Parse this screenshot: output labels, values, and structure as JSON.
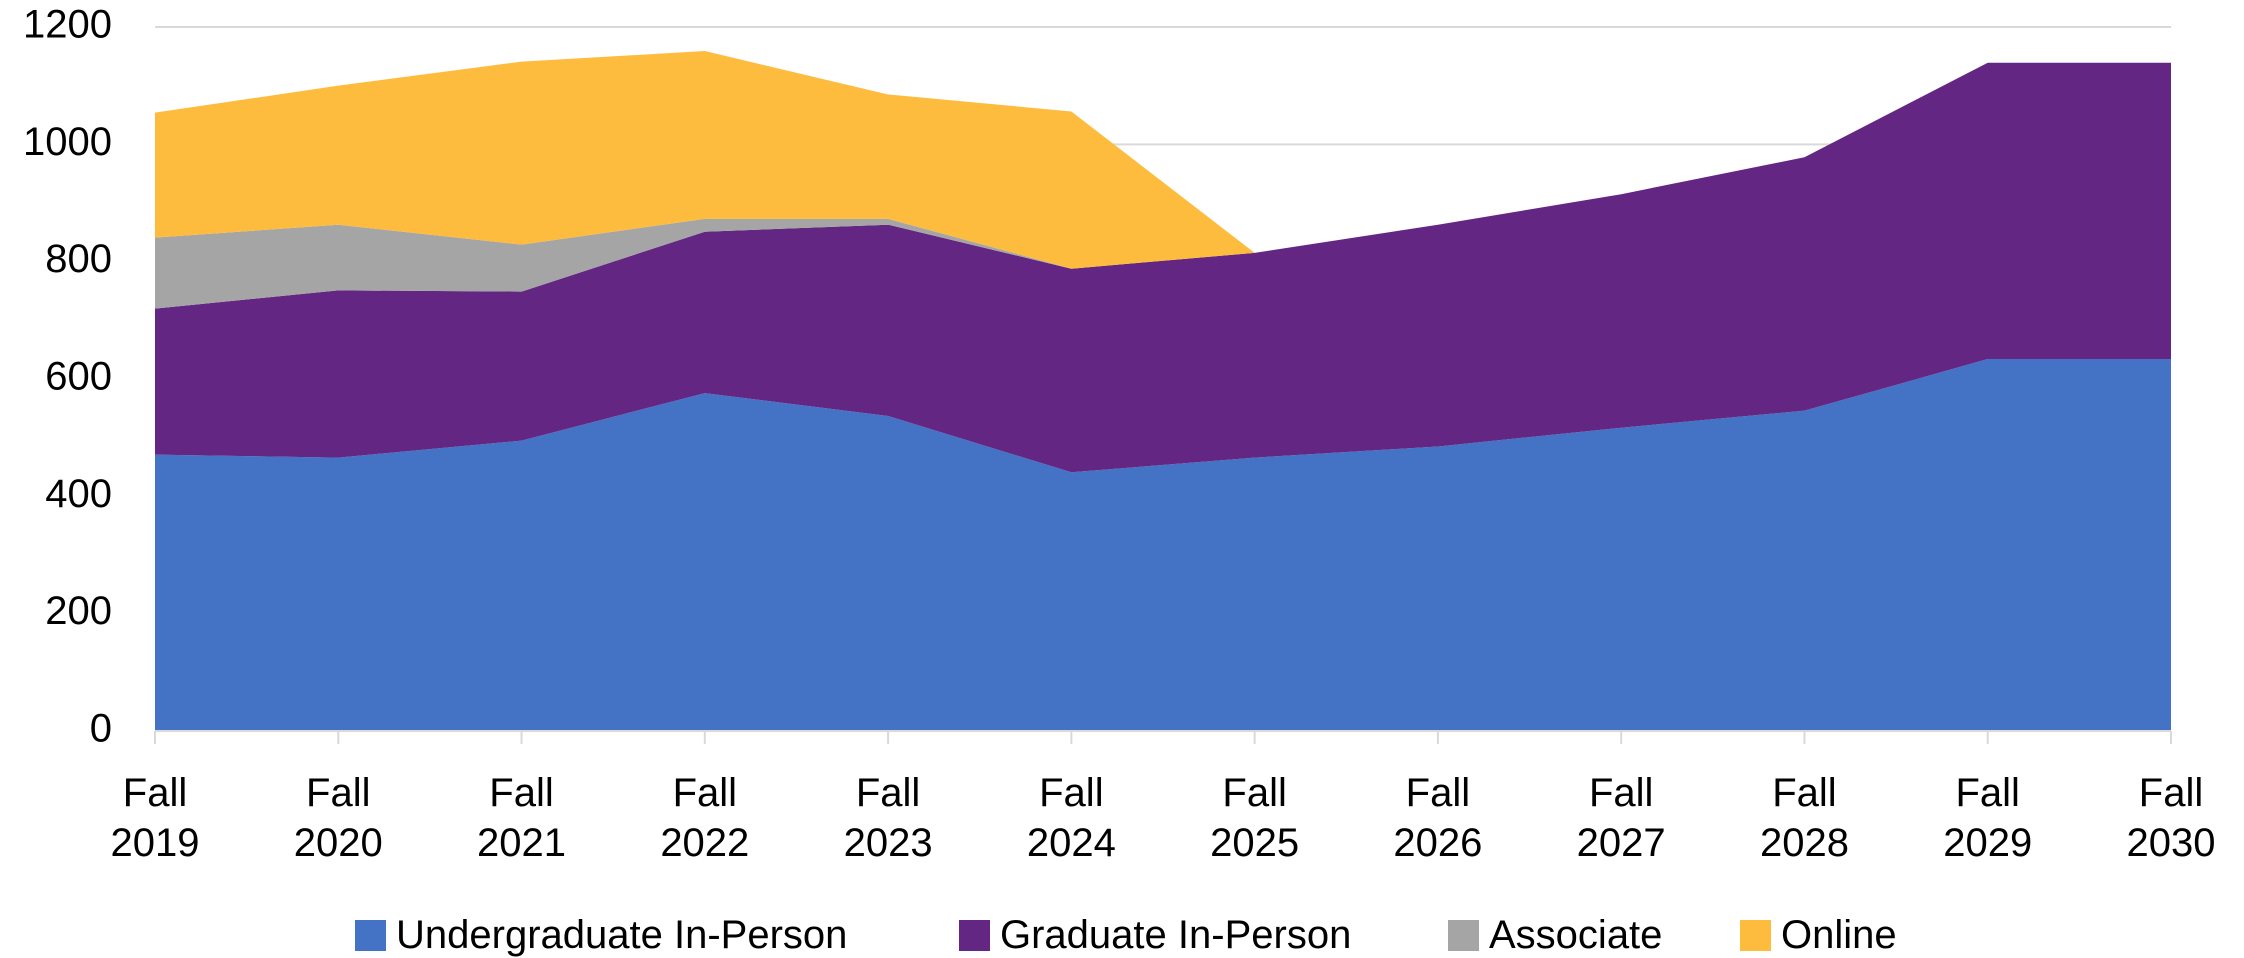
{
  "chart_data": {
    "type": "stacked-area",
    "categories": [
      "Fall 2019",
      "Fall 2020",
      "Fall 2021",
      "Fall 2022",
      "Fall 2023",
      "Fall 2024",
      "Fall 2025",
      "Fall 2026",
      "Fall 2027",
      "Fall 2028",
      "Fall 2029",
      "Fall 2030"
    ],
    "series": [
      {
        "name": "Undergraduate In-Person",
        "color": "#4472c4",
        "values": [
          471,
          466,
          495,
          576,
          537,
          441,
          466,
          485,
          517,
          546,
          634,
          634
        ]
      },
      {
        "name": "Graduate In-Person",
        "color": "#632683",
        "values": [
          249,
          285,
          254,
          275,
          326,
          347,
          349,
          378,
          398,
          432,
          505,
          505
        ]
      },
      {
        "name": "Associate",
        "color": "#a5a5a5",
        "values": [
          121,
          112,
          80,
          22,
          10,
          0,
          0,
          0,
          0,
          0,
          0,
          0
        ]
      },
      {
        "name": "Online",
        "color": "#fdbc3e",
        "values": [
          213,
          237,
          312,
          286,
          212,
          268,
          0,
          0,
          0,
          0,
          0,
          0
        ]
      }
    ],
    "ylim": [
      0,
      1200
    ],
    "yticks": [
      0,
      200,
      400,
      600,
      800,
      1000,
      1200
    ],
    "grid": true,
    "legend": "bottom"
  }
}
